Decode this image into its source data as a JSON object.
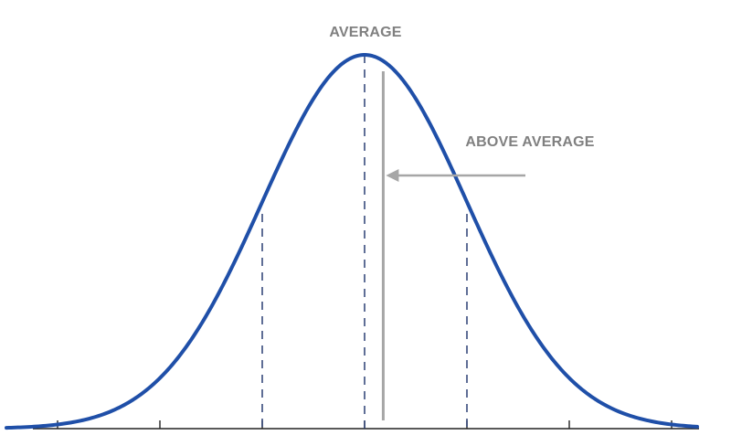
{
  "labels": {
    "average": "AVERAGE",
    "above_average": "ABOVE AVERAGE"
  },
  "colors": {
    "curve": "#1f4fa8",
    "label_text": "#808080",
    "marker_line": "#a6a6a6",
    "dashed_lines": "#2a3f73",
    "axis": "#222222"
  },
  "chart_data": {
    "type": "line",
    "description_of_shape": "normal distribution",
    "mean": 0,
    "standard_deviation": 1,
    "xlim": [
      -3.5,
      3.25
    ],
    "tick_values": [
      -3,
      -2,
      -1,
      0,
      1,
      2,
      3
    ],
    "dashed_reference_lines_at": [
      -1,
      0,
      1
    ],
    "marked_value": 0.2
  }
}
